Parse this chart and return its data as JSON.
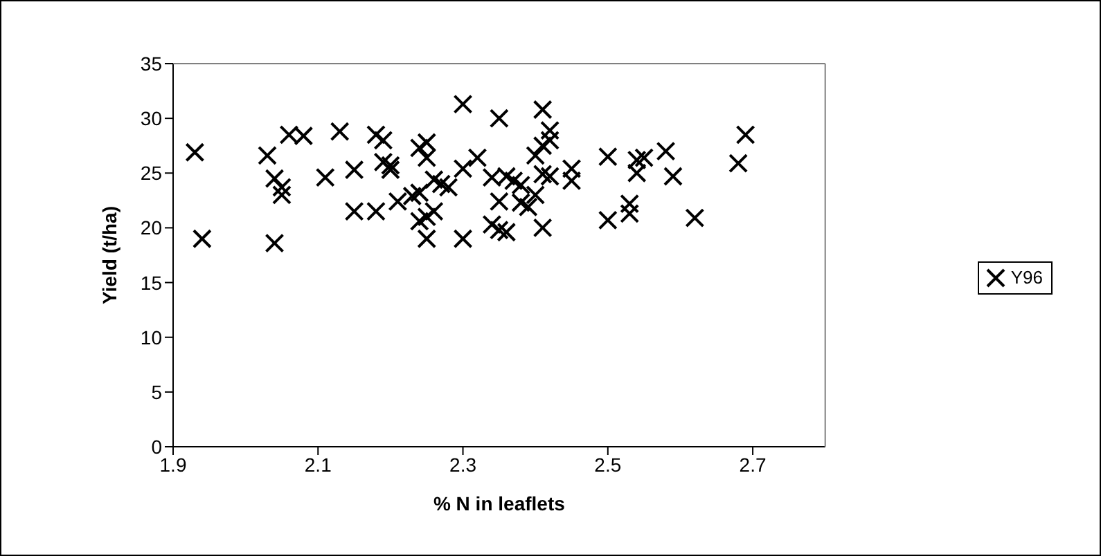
{
  "chart_data": {
    "type": "scatter",
    "xlabel": "% N in leaflets",
    "ylabel": "Yield (t/ha)",
    "xlim": [
      1.9,
      2.8
    ],
    "xticks": [
      1.9,
      2.1,
      2.3,
      2.5,
      2.7
    ],
    "ylim": [
      0,
      35
    ],
    "yticks": [
      0,
      5,
      10,
      15,
      20,
      25,
      30,
      35
    ],
    "grid": false,
    "legend": "right",
    "marker": "cross",
    "series": [
      {
        "name": "Y96",
        "color": "#000000",
        "x": [
          1.93,
          1.94,
          2.03,
          2.04,
          2.04,
          2.05,
          2.05,
          2.06,
          2.08,
          2.11,
          2.13,
          2.15,
          2.15,
          2.18,
          2.18,
          2.19,
          2.19,
          2.2,
          2.2,
          2.21,
          2.23,
          2.24,
          2.24,
          2.24,
          2.25,
          2.25,
          2.25,
          2.25,
          2.26,
          2.26,
          2.27,
          2.28,
          2.3,
          2.3,
          2.3,
          2.32,
          2.34,
          2.34,
          2.35,
          2.35,
          2.35,
          2.36,
          2.36,
          2.37,
          2.38,
          2.38,
          2.39,
          2.4,
          2.4,
          2.41,
          2.41,
          2.41,
          2.41,
          2.42,
          2.42,
          2.42,
          2.45,
          2.45,
          2.5,
          2.5,
          2.53,
          2.53,
          2.54,
          2.54,
          2.55,
          2.58,
          2.59,
          2.62,
          2.68,
          2.69
        ],
        "values": [
          26.9,
          19.0,
          26.6,
          18.6,
          24.5,
          23.7,
          23.0,
          28.5,
          28.4,
          24.6,
          28.8,
          25.3,
          21.5,
          21.5,
          28.5,
          28.0,
          26.0,
          25.7,
          25.3,
          22.4,
          22.9,
          27.3,
          23.2,
          20.6,
          27.8,
          26.4,
          21.0,
          19.0,
          21.5,
          24.4,
          24.0,
          23.7,
          31.3,
          19.0,
          25.4,
          26.4,
          24.6,
          20.3,
          30.0,
          22.4,
          19.8,
          19.6,
          24.7,
          24.3,
          22.3,
          23.9,
          21.9,
          23.0,
          26.6,
          30.8,
          27.5,
          24.9,
          20.0,
          28.9,
          28.0,
          24.7,
          25.4,
          24.3,
          26.5,
          20.7,
          22.2,
          21.3,
          26.2,
          25.0,
          26.4,
          27.0,
          24.7,
          20.9,
          25.9,
          28.5
        ]
      }
    ]
  }
}
